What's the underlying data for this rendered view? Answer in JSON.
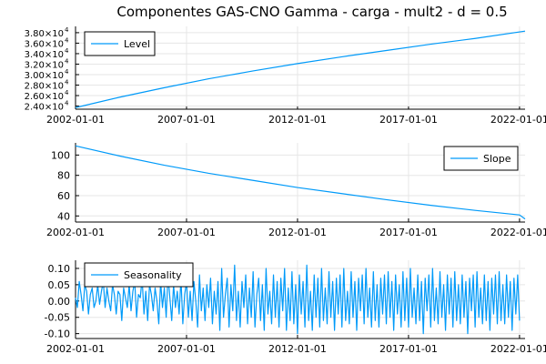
{
  "colors": {
    "series": "#009af9",
    "grid": "#e6e6e6",
    "axis": "#000000"
  },
  "chart_data": {
    "type": "line",
    "title": "Componentes GAS-CNO Gamma - carga - mult2 - d = 0.5",
    "grid": true,
    "x_tick_labels": [
      "2002-01-01",
      "2007-01-01",
      "2012-01-01",
      "2017-01-01",
      "2022-01-01"
    ],
    "x_tick_years": [
      2002,
      2007,
      2012,
      2017,
      2022
    ],
    "xlim": [
      2002,
      2022.25
    ],
    "panels": [
      {
        "series_name": "Level",
        "legend_position": "top-left",
        "ylim": [
          23400,
          39200
        ],
        "y_tick_mantissas": [
          "2.40",
          "2.60",
          "2.80",
          "3.00",
          "3.20",
          "3.40",
          "3.60",
          "3.80"
        ],
        "y_tick_values": [
          24000,
          26000,
          28000,
          30000,
          32000,
          34000,
          36000,
          38000
        ],
        "y_tick_base": "×10",
        "y_tick_exponent": "4",
        "x": [
          2002,
          2004,
          2006,
          2008,
          2010,
          2012,
          2014,
          2016,
          2018,
          2020,
          2022.25
        ],
        "values": [
          23700,
          25700,
          27500,
          29200,
          30700,
          32100,
          33400,
          34600,
          35800,
          36900,
          38300
        ]
      },
      {
        "series_name": "Slope",
        "legend_position": "top-right",
        "ylim": [
          34,
          112
        ],
        "y_tick_labels": [
          "40",
          "60",
          "80",
          "100"
        ],
        "y_tick_values": [
          40,
          60,
          80,
          100
        ],
        "x": [
          2002,
          2004,
          2006,
          2008,
          2010,
          2012,
          2014,
          2016,
          2018,
          2020,
          2022,
          2022.25
        ],
        "values": [
          109,
          99,
          90,
          82,
          75,
          68,
          62,
          56,
          50.5,
          45.5,
          41,
          37
        ]
      },
      {
        "series_name": "Seasonality",
        "legend_position": "top-left",
        "ylim": [
          -0.115,
          0.125
        ],
        "y_tick_labels": [
          "-0.10",
          "-0.05",
          "0.00",
          "0.05",
          "0.10"
        ],
        "y_tick_values": [
          -0.1,
          -0.05,
          0,
          0.05,
          0.1
        ],
        "x_start": 2002,
        "x_step": 0.0833333,
        "values": [
          0.01,
          -0.02,
          0.06,
          0.02,
          -0.03,
          0.05,
          0.03,
          -0.04,
          0.02,
          0.04,
          -0.02,
          0.0,
          0.05,
          -0.01,
          0.03,
          0.06,
          -0.02,
          0.04,
          0.0,
          -0.03,
          0.05,
          0.02,
          -0.04,
          0.03,
          0.02,
          -0.06,
          0.04,
          0.01,
          -0.02,
          0.05,
          -0.03,
          0.03,
          0.06,
          -0.05,
          0.02,
          0.01,
          0.07,
          -0.04,
          0.03,
          -0.06,
          0.05,
          0.02,
          -0.03,
          0.04,
          0.0,
          -0.07,
          0.06,
          -0.02,
          0.04,
          -0.05,
          0.08,
          0.01,
          -0.06,
          0.05,
          -0.02,
          0.03,
          -0.04,
          0.07,
          -0.07,
          0.02,
          0.06,
          -0.05,
          0.03,
          -0.06,
          0.06,
          0.0,
          -0.08,
          0.08,
          -0.03,
          0.04,
          -0.06,
          0.05,
          -0.02,
          0.07,
          -0.07,
          0.03,
          -0.04,
          0.06,
          -0.09,
          0.1,
          -0.05,
          0.02,
          0.07,
          -0.08,
          0.05,
          -0.03,
          0.11,
          -0.06,
          0.03,
          -0.08,
          0.06,
          -0.02,
          0.08,
          -0.07,
          0.04,
          -0.05,
          0.09,
          -0.08,
          0.02,
          0.07,
          -0.06,
          0.05,
          -0.09,
          0.1,
          -0.04,
          0.03,
          -0.07,
          0.08,
          -0.05,
          0.06,
          -0.08,
          0.07,
          -0.03,
          0.1,
          -0.09,
          0.04,
          -0.06,
          0.09,
          -0.07,
          0.05,
          -0.1,
          0.08,
          -0.04,
          0.06,
          -0.08,
          0.11,
          -0.06,
          0.03,
          -0.09,
          0.08,
          -0.05,
          0.07,
          -0.08,
          0.1,
          -0.06,
          0.04,
          -0.07,
          0.09,
          -0.05,
          0.06,
          -0.09,
          0.07,
          -0.04,
          0.08,
          -0.08,
          0.1,
          -0.06,
          0.03,
          -0.07,
          0.09,
          -0.05,
          0.06,
          -0.09,
          0.07,
          -0.03,
          0.08,
          -0.07,
          0.1,
          -0.05,
          0.04,
          -0.08,
          0.09,
          -0.06,
          0.05,
          -0.08,
          0.07,
          -0.04,
          0.08,
          -0.07,
          0.09,
          -0.05,
          0.06,
          -0.09,
          0.08,
          -0.04,
          0.05,
          -0.08,
          0.09,
          -0.06,
          0.07,
          -0.08,
          0.1,
          -0.05,
          0.04,
          -0.07,
          0.08,
          -0.06,
          0.06,
          -0.1,
          0.07,
          -0.03,
          0.08,
          -0.08,
          0.1,
          -0.06,
          0.04,
          -0.07,
          0.09,
          -0.05,
          0.05,
          -0.09,
          0.08,
          -0.04,
          0.07,
          -0.08,
          0.09,
          -0.06,
          0.05,
          -0.07,
          0.08,
          -0.05,
          0.06,
          -0.1,
          0.07,
          -0.03,
          0.08,
          -0.08,
          0.09,
          -0.05,
          0.04,
          -0.07,
          0.08,
          -0.06,
          0.06,
          -0.09,
          0.07,
          -0.04,
          0.08,
          -0.07,
          0.09,
          -0.06,
          0.05,
          -0.07,
          0.08,
          -0.05,
          0.06,
          -0.09,
          0.07,
          -0.04,
          0.08,
          -0.06
        ]
      }
    ]
  }
}
